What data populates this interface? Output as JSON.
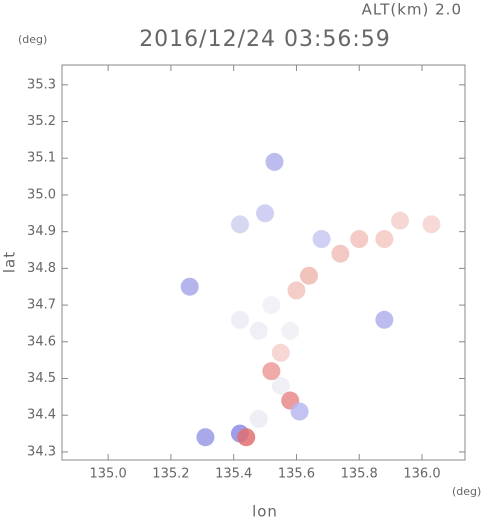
{
  "chart_data": {
    "type": "scatter",
    "title": "2016/12/24 03:56:59",
    "altitude_label": "ALT(km) 2.0",
    "x_label": "lon",
    "y_label": "lat",
    "x_unit": "(deg)",
    "y_unit": "(deg)",
    "x": [
      135.93,
      135.88,
      135.8,
      135.74,
      135.64,
      135.6,
      135.52,
      135.48,
      135.58,
      135.42,
      135.5,
      135.42,
      135.55,
      135.58,
      135.48,
      135.42,
      135.53,
      136.03,
      135.61,
      135.52,
      135.31,
      135.44,
      135.88,
      135.26,
      135.68,
      135.55
    ],
    "y": [
      34.93,
      34.88,
      34.88,
      34.84,
      34.78,
      34.74,
      34.7,
      34.63,
      34.63,
      34.66,
      34.95,
      34.92,
      34.48,
      34.44,
      34.39,
      34.35,
      35.09,
      34.92,
      34.41,
      34.52,
      34.34,
      34.34,
      34.66,
      34.75,
      34.88,
      34.57
    ],
    "colors": [
      "#f6d0cc",
      "#f4c8c2",
      "#f2c2bc",
      "#f0c0ba",
      "#f0b8b0",
      "#f2c4be",
      "#f0eef4",
      "#eeecf4",
      "#f0eef4",
      "#eceaf4",
      "#c8c8f2",
      "#d0d0f2",
      "#eeecf4",
      "#e88a8a",
      "#ecebf2",
      "#8c8ce6",
      "#b0b0ec",
      "#f6d4d0",
      "#b8b8ee",
      "#ec9a9a",
      "#9a9ae6",
      "#e07070",
      "#b0b0ec",
      "#a8a8ea",
      "#c8c8f2",
      "#f4d0cc"
    ],
    "xlim": [
      134.853,
      136.137
    ],
    "ylim": [
      34.278,
      35.354
    ],
    "xticks": [
      {
        "value": 135.0,
        "label": "135.0"
      },
      135.2,
      135.4,
      135.6,
      135.8,
      {
        "value": 136.0,
        "label": "136.0"
      }
    ],
    "yticks": [
      34.3,
      34.4,
      34.5,
      34.6,
      34.7,
      34.8,
      34.9,
      {
        "value": 35.0,
        "label": "35.0"
      },
      35.1,
      35.2,
      35.3
    ],
    "grid": false
  }
}
